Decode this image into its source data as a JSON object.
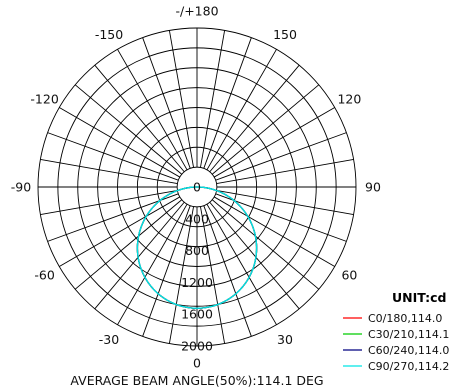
{
  "chart_data": {
    "type": "polar",
    "title": "",
    "unit_label": "UNIT:cd",
    "footer": "AVERAGE BEAM ANGLE(50%):114.1 DEG",
    "angle_labels": [
      {
        "angle": 180,
        "text": "-/+180"
      },
      {
        "angle": -150,
        "text": "-150"
      },
      {
        "angle": 150,
        "text": "150"
      },
      {
        "angle": -120,
        "text": "-120"
      },
      {
        "angle": 120,
        "text": "120"
      },
      {
        "angle": -90,
        "text": "-90"
      },
      {
        "angle": 90,
        "text": "90"
      },
      {
        "angle": -60,
        "text": "-60"
      },
      {
        "angle": 60,
        "text": "60"
      },
      {
        "angle": -30,
        "text": "-30"
      },
      {
        "angle": 30,
        "text": "30"
      },
      {
        "angle": 0,
        "text": "0"
      }
    ],
    "radial_ticks": [
      0,
      400,
      800,
      1200,
      1600,
      2000
    ],
    "rmax": 2000,
    "ring_values": [
      250,
      500,
      750,
      1000,
      1250,
      1500,
      1750,
      2000
    ],
    "spoke_step_deg": 10,
    "peak_cd": 1525,
    "beam_exponent": 1.05,
    "series": [
      {
        "name": "C0/180,114.0",
        "color": "#ff0000"
      },
      {
        "name": "C30/210,114.1",
        "color": "#00cc00"
      },
      {
        "name": "C60/240,114.0",
        "color": "#000080"
      },
      {
        "name": "C90/270,114.2",
        "color": "#00e5e5"
      }
    ]
  }
}
